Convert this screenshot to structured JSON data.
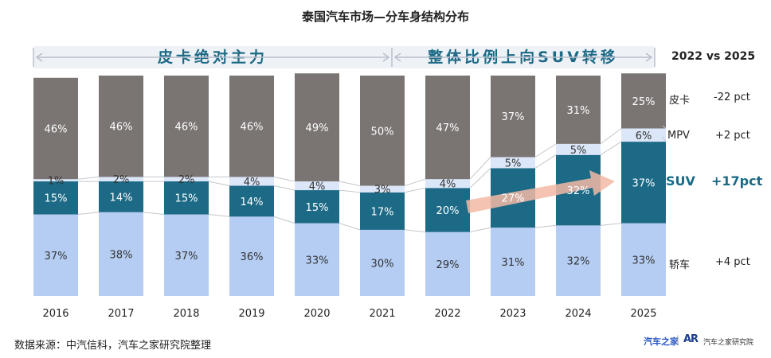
{
  "title": "泰国汽车市场—分车身结构分布",
  "banners": [
    {
      "text": "皮卡绝对主力"
    },
    {
      "text": "整体比例上向SUV转移"
    }
  ],
  "comparison": {
    "title": "2022 vs 2025",
    "items": [
      {
        "name": "皮卡",
        "change": "-22 pct"
      },
      {
        "name": "MPV",
        "change": "+2 pct"
      },
      {
        "name": "SUV",
        "change": "+17pct"
      },
      {
        "name": "轿车",
        "change": "+4 pct"
      }
    ]
  },
  "source": "数据来源：中汽信科，汽车之家研究院整理",
  "logos": {
    "brand": "汽车之家",
    "mark": "AR",
    "institute": "汽车之家研究院"
  },
  "colors": {
    "pickup": "#7a7573",
    "mpv": "#dbe6f8",
    "suv": "#1c6a86",
    "sedan": "#b5cdf3"
  },
  "chart_data": {
    "type": "bar",
    "stacked": true,
    "categories": [
      "2016",
      "2017",
      "2018",
      "2019",
      "2020",
      "2021",
      "2022",
      "2023",
      "2024",
      "2025"
    ],
    "series": [
      {
        "name": "轿车",
        "values": [
          37,
          38,
          37,
          36,
          33,
          30,
          29,
          31,
          32,
          33
        ]
      },
      {
        "name": "SUV",
        "values": [
          15,
          14,
          15,
          14,
          15,
          17,
          20,
          27,
          32,
          37
        ]
      },
      {
        "name": "MPV",
        "values": [
          1,
          2,
          2,
          4,
          4,
          3,
          4,
          5,
          5,
          6
        ]
      },
      {
        "name": "皮卡",
        "values": [
          46,
          46,
          46,
          46,
          49,
          50,
          47,
          37,
          31,
          25
        ]
      }
    ],
    "ylim": [
      0,
      100
    ],
    "xlabel": "",
    "ylabel": ""
  }
}
